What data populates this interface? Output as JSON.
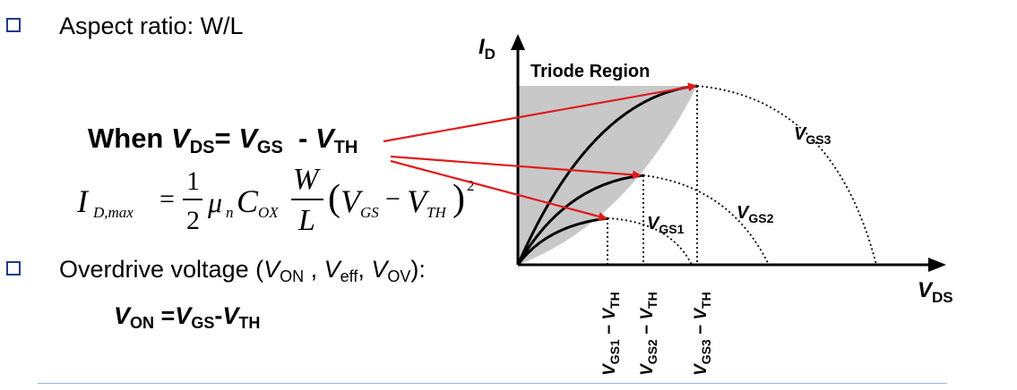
{
  "colors": {
    "bullet": "#1f3a8a",
    "arrow": "#e01b1b",
    "shade": "#c8c8c8",
    "divider": "#9fb3d6"
  },
  "bullets": {
    "aspect": "Aspect ratio: W/L",
    "overdrive_prefix": "Overdrive voltage (",
    "overdrive_suffix": "):"
  },
  "overdrive_terms": [
    {
      "v": "V",
      "sub": "ON",
      "sep": " , "
    },
    {
      "v": "V",
      "sub": "eff",
      "sep": ", "
    },
    {
      "v": "V",
      "sub": "OV",
      "sep": ""
    }
  ],
  "condition": {
    "prefix": "When ",
    "v1": "V",
    "s1": "DS",
    "eq": "= ",
    "v2": "V",
    "s2": "GS",
    "minus": "  - ",
    "v3": "V",
    "s3": "TH"
  },
  "formula": {
    "lhs_var": "I",
    "lhs_sub": "D,max",
    "eq": "=",
    "frac1_num": "1",
    "frac1_den": "2",
    "mu": "μ",
    "mu_sub": "n",
    "c": "C",
    "c_sub": "OX",
    "frac2_num": "W",
    "frac2_den": "L",
    "paren_open": "(",
    "vgs": "V",
    "vgs_sub": "GS",
    "minus": "−",
    "vth": "V",
    "vth_sub": "TH",
    "paren_close": ")",
    "exp": "2"
  },
  "von": {
    "v1": "V",
    "s1": "ON",
    "eq": " =",
    "v2": "V",
    "s2": "GS",
    "dash": "-",
    "v3": "V",
    "s3": "TH"
  },
  "graph": {
    "y_axis_var": "I",
    "y_axis_sub": "D",
    "x_axis_var": "V",
    "x_axis_sub": "DS",
    "region_label": "Triode Region",
    "curve_labels": [
      {
        "v": "V",
        "sub": "GS1"
      },
      {
        "v": "V",
        "sub": "GS2"
      },
      {
        "v": "V",
        "sub": "GS3"
      }
    ],
    "tick_labels": [
      {
        "v1": "V",
        "s1": "GS1",
        "mid": " − ",
        "v2": "V",
        "s2": "TH"
      },
      {
        "v1": "V",
        "s1": "GS2",
        "mid": " − ",
        "v2": "V",
        "s2": "TH"
      },
      {
        "v1": "V",
        "s1": "GS3",
        "mid": " − ",
        "v2": "V",
        "s2": "TH"
      }
    ]
  }
}
